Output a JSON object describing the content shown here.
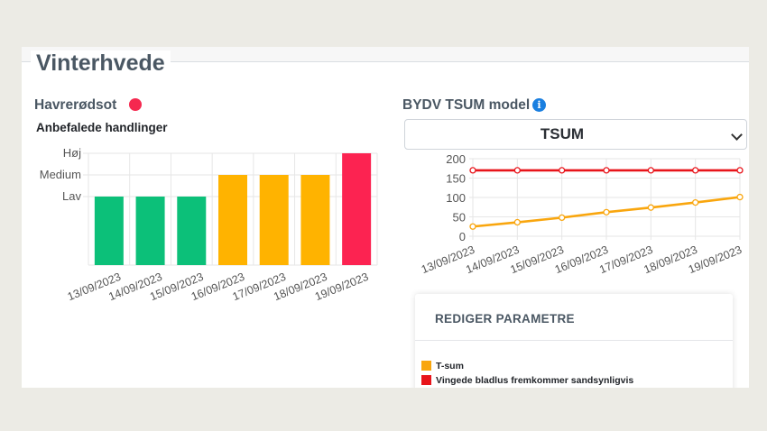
{
  "page": {
    "title": "Vinterhvede"
  },
  "disease": {
    "name": "Havrerødsot",
    "status_color": "#f5284f"
  },
  "recommendations": {
    "title": "Anbefalede handlinger",
    "chart_data": {
      "type": "bar",
      "categories": [
        "13/09/2023",
        "14/09/2023",
        "15/09/2023",
        "16/09/2023",
        "17/09/2023",
        "18/09/2023",
        "19/09/2023"
      ],
      "levels": [
        "Lav",
        "Medium",
        "Høj"
      ],
      "values": [
        1,
        1,
        1,
        2,
        2,
        2,
        3
      ],
      "colors": [
        "#0cc079",
        "#0cc079",
        "#0cc079",
        "#ffb300",
        "#ffb300",
        "#ffb300",
        "#fc2351"
      ],
      "grid": true
    }
  },
  "model": {
    "title": "BYDV TSUM model",
    "info_icon": "info-icon",
    "select_value": "TSUM",
    "chart_data": {
      "type": "line",
      "x": [
        "13/09/2023",
        "14/09/2023",
        "15/09/2023",
        "16/09/2023",
        "17/09/2023",
        "18/09/2023",
        "19/09/2023"
      ],
      "ylim": [
        0,
        200
      ],
      "yticks": [
        0,
        50,
        100,
        150,
        200
      ],
      "grid": true,
      "series": [
        {
          "name": "T-sum",
          "color": "#f9a60e",
          "values": [
            25,
            36,
            48,
            62,
            74,
            87,
            101
          ]
        },
        {
          "name": "Vingede bladlus fremkommer sandsynligvis",
          "color": "#e8141a",
          "values": [
            170,
            170,
            170,
            170,
            170,
            170,
            170
          ]
        }
      ]
    }
  },
  "params": {
    "title": "REDIGER PARAMETRE"
  }
}
